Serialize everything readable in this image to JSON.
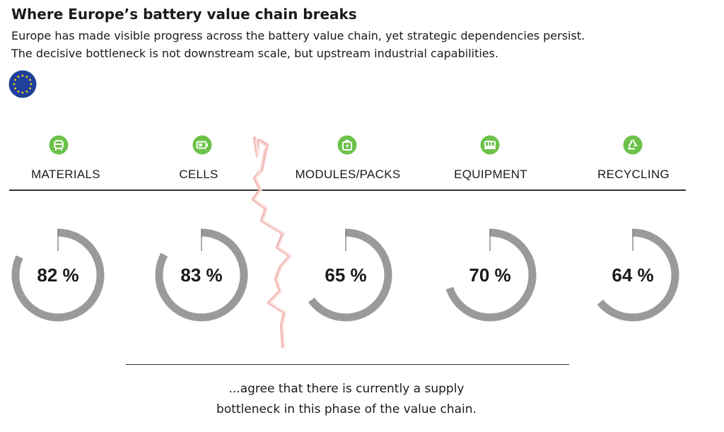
{
  "header": {
    "title": "Where Europe’s battery value chain breaks",
    "subtitle_line1": "Europe has made visible progress across the battery value chain, yet strategic dependencies persist.",
    "subtitle_line2": "The decisive bottleneck is not downstream scale, but upstream industrial capabilities."
  },
  "colors": {
    "icon_green": "#6cc24a",
    "ring_gray": "#9a9a9a",
    "eu_blue": "#1f3f9a",
    "eu_star": "#f5d31c",
    "crack_red": "#f2b7b3"
  },
  "stages": [
    {
      "label": "MATERIALS",
      "icon": "car-icon"
    },
    {
      "label": "CELLS",
      "icon": "battery-icon"
    },
    {
      "label": "MODULES/PACKS",
      "icon": "battery-pack-icon"
    },
    {
      "label": "EQUIPMENT",
      "icon": "machinery-icon"
    },
    {
      "label": "RECYCLING",
      "icon": "recycle-icon"
    }
  ],
  "chart_data": {
    "type": "donut",
    "unit": "%",
    "categories": [
      "MATERIALS",
      "CELLS",
      "MODULES/PACKS",
      "EQUIPMENT",
      "RECYCLING"
    ],
    "values": [
      82,
      83,
      65,
      70,
      64
    ],
    "labels": [
      "82 %",
      "83 %",
      "65 %",
      "70 %",
      "64 %"
    ],
    "max": 100
  },
  "footnote": {
    "line1": "...agree that there is currently a supply",
    "line2": "bottleneck in this phase of the value chain."
  }
}
